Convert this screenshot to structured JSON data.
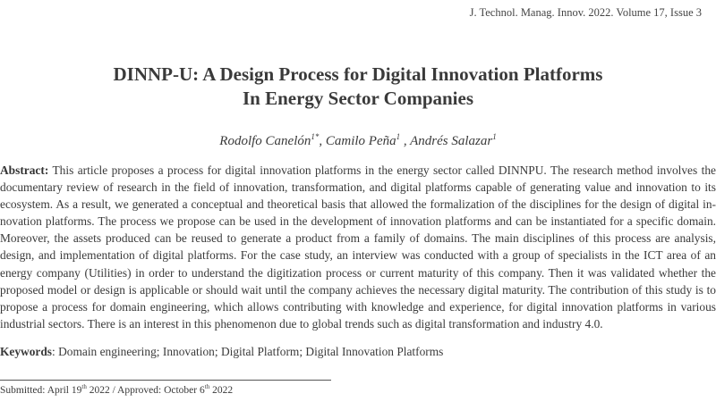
{
  "journal_header": "J. Technol. Manag. Innov. 2022. Volume 17, Issue 3",
  "title_lines": [
    "DINNP-U: A Design Process for Digital Innovation Platforms",
    "In Energy Sector Companies"
  ],
  "authors": [
    {
      "name": "Rodolfo Canelón",
      "mark": "1*"
    },
    {
      "name": "Camilo Peña",
      "mark": "1"
    },
    {
      "name": "Andrés Salazar",
      "mark": "1"
    }
  ],
  "abstract": {
    "label": "Abstract:",
    "lines": [
      " This article proposes a process for digital innovation platforms in the energy sector called DINNPU. The research method involves the",
      "documentary review of research in the field of innovation, transformation, and digital platforms capable of generating value and innovation to its",
      "ecosystem. As a result, we generated a conceptual and theoretical basis that allowed the formalization of the disciplines for the design of digital in-",
      "novation platforms. The process we propose can be used in the development of innovation platforms and can be instantiated for a specific domain.",
      "Moreover, the assets produced can be reused to generate a product from a family of domains. The main disciplines of this process are analysis,",
      "design, and implementation of digital platforms. For the case study, an interview was conducted with a group of specialists in the ICT area of an",
      "energy company (Utilities) in order to understand the digitization process or current maturity of this company. Then it was validated whether the",
      "proposed model or design is applicable or should wait until the company achieves the necessary digital maturity. The contribution of this study is to",
      "propose a process for domain engineering, which allows contributing with knowledge and experience, for digital innovation platforms  in various",
      "industrial sectors. There is an interest in this phenomenon due to global trends such as digital transformation and industry 4.0."
    ]
  },
  "keywords": {
    "label": "Keywords",
    "text": ": Domain engineering; Innovation; Digital Platform; Digital Innovation Platforms"
  },
  "submitted": {
    "submitted_prefix": "Submitted: April 19",
    "submitted_sup": "th",
    "submitted_year": " 2022 / Approved: October 6",
    "approved_sup": "th",
    "approved_year": " 2022"
  }
}
